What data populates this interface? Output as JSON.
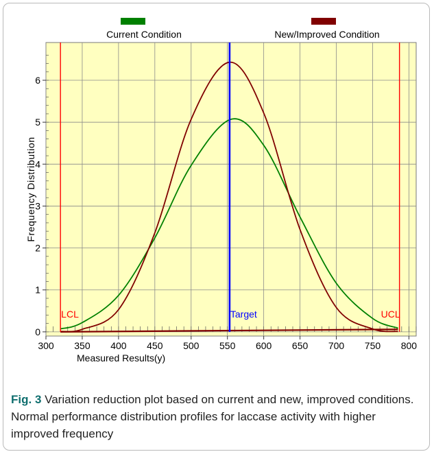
{
  "chart_data": {
    "type": "line",
    "xlabel": "Measured Results(y)",
    "ylabel": "Frequency Distribution",
    "xlim": [
      300,
      810
    ],
    "ylim": [
      -0.1,
      6.9
    ],
    "xticks": [
      300,
      350,
      400,
      450,
      500,
      550,
      600,
      650,
      700,
      750,
      800
    ],
    "yticks": [
      0,
      1,
      2,
      3,
      4,
      5,
      6
    ],
    "grid": true,
    "legend_position": "top",
    "background_color": "#ffffc0",
    "series": [
      {
        "name": "Current Condition",
        "color": "#008000",
        "x": [
          320,
          350,
          400,
          450,
          500,
          555,
          600,
          650,
          700,
          750,
          785
        ],
        "y": [
          0.07,
          0.22,
          0.87,
          2.24,
          3.97,
          5.07,
          4.45,
          2.74,
          1.16,
          0.32,
          0.09
        ]
      },
      {
        "name": "New/Improved Condition",
        "color": "#800000",
        "x": [
          320,
          350,
          400,
          450,
          500,
          553,
          600,
          650,
          700,
          750,
          785
        ],
        "y": [
          0.01,
          0.06,
          0.53,
          2.36,
          5.07,
          6.43,
          5.22,
          2.44,
          0.58,
          0.07,
          0.01
        ]
      }
    ],
    "baseline_series": [
      {
        "color": "#800000",
        "x": [
          320,
          785
        ],
        "y": [
          0.0,
          0.06
        ]
      }
    ],
    "reference_lines": [
      {
        "label": "LCL",
        "x": 320,
        "color": "#ff0000"
      },
      {
        "label": "Target",
        "x": 553,
        "color": "#0000ff"
      },
      {
        "label": "UCL",
        "x": 787,
        "color": "#ff0000"
      }
    ]
  },
  "caption": {
    "figure_label": "Fig. 3",
    "text": " Variation reduction plot based on current and new, improved conditions. Normal performance distribution profiles for laccase activity with higher improved frequency"
  }
}
